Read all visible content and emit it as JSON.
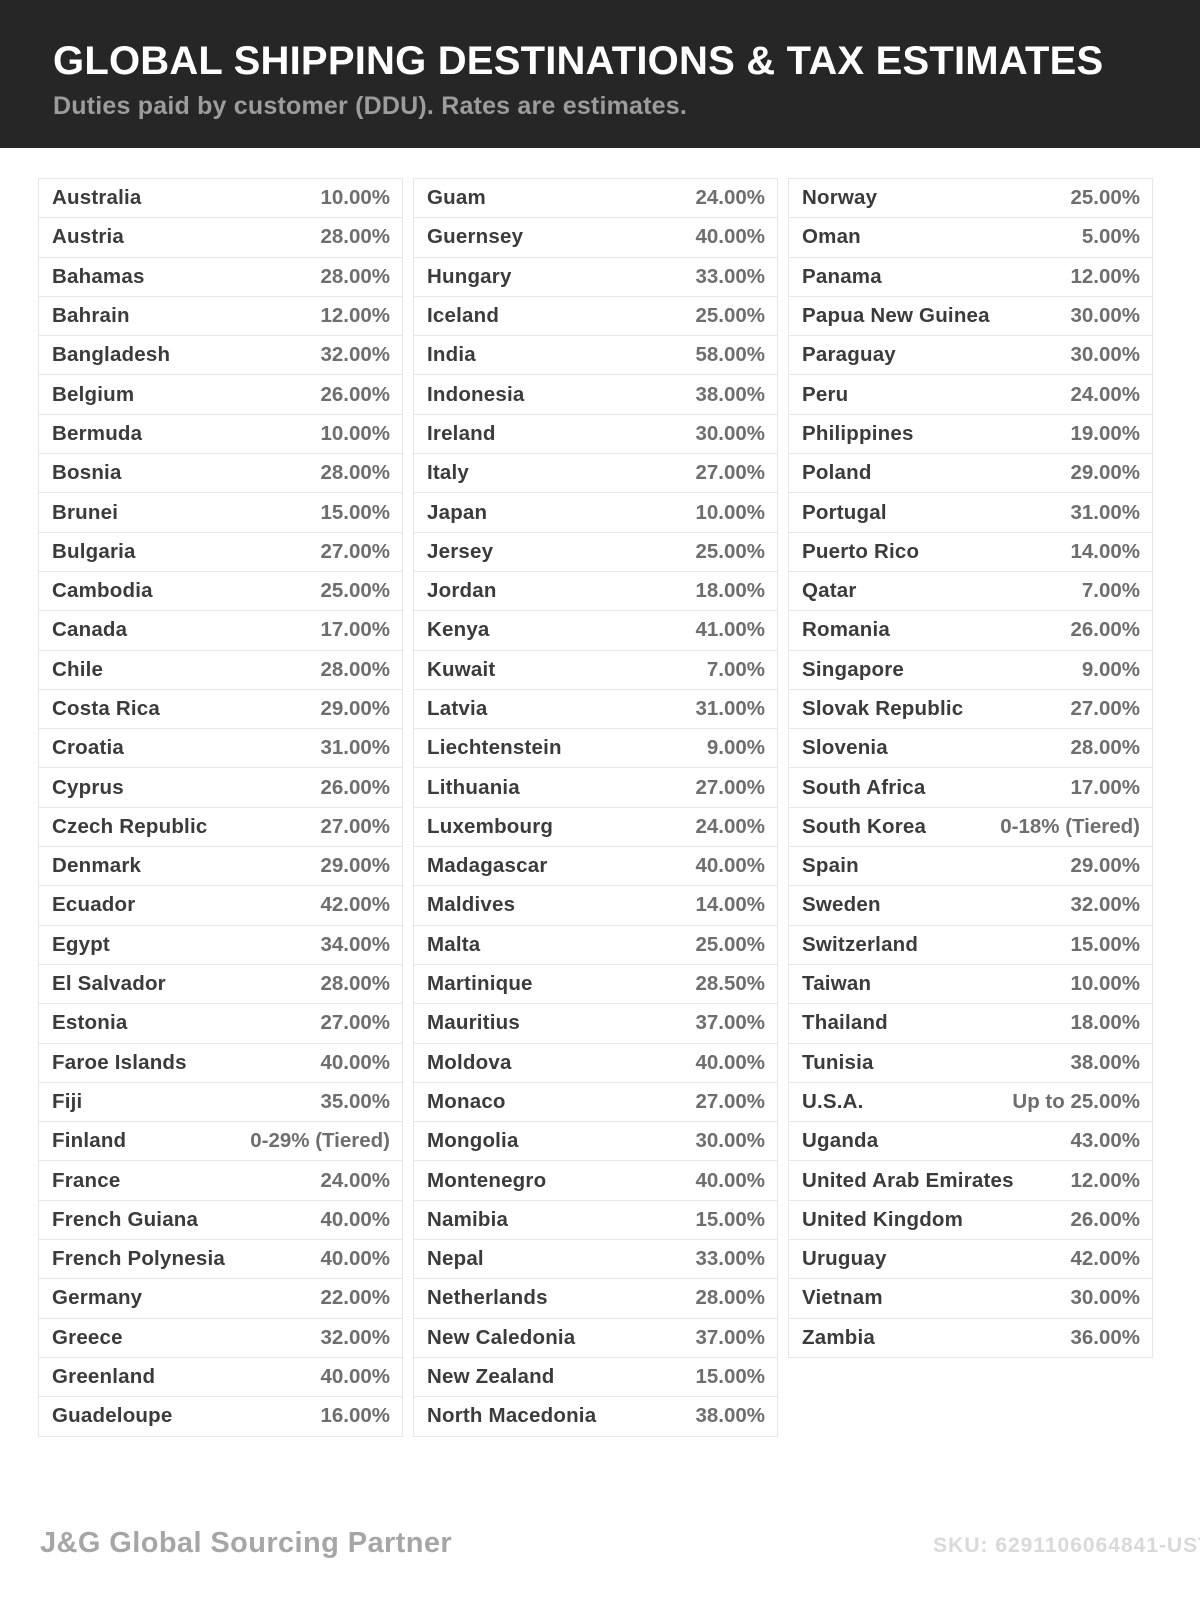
{
  "header": {
    "title": "GLOBAL SHIPPING DESTINATIONS & TAX ESTIMATES",
    "subtitle": "Duties paid by customer (DDU). Rates are estimates."
  },
  "footer": {
    "brand": "J&G Global Sourcing Partner",
    "sku": "SKU: 6291106064841-UST"
  },
  "colors": {
    "header_bg": "#262626",
    "title": "#ffffff",
    "subtitle": "#9c9c9c",
    "country": "#3b3b3b",
    "rate": "#6e6e6e",
    "row_border": "#e7e7e7",
    "footer_brand": "#a6a6a6",
    "footer_sku": "#d9d9d9",
    "page_bg": "#ffffff"
  },
  "columns": [
    [
      {
        "country": "Australia",
        "rate": "10.00%"
      },
      {
        "country": "Austria",
        "rate": "28.00%"
      },
      {
        "country": "Bahamas",
        "rate": "28.00%"
      },
      {
        "country": "Bahrain",
        "rate": "12.00%"
      },
      {
        "country": "Bangladesh",
        "rate": "32.00%"
      },
      {
        "country": "Belgium",
        "rate": "26.00%"
      },
      {
        "country": "Bermuda",
        "rate": "10.00%"
      },
      {
        "country": "Bosnia",
        "rate": "28.00%"
      },
      {
        "country": "Brunei",
        "rate": "15.00%"
      },
      {
        "country": "Bulgaria",
        "rate": "27.00%"
      },
      {
        "country": "Cambodia",
        "rate": "25.00%"
      },
      {
        "country": "Canada",
        "rate": "17.00%"
      },
      {
        "country": "Chile",
        "rate": "28.00%"
      },
      {
        "country": "Costa Rica",
        "rate": "29.00%"
      },
      {
        "country": "Croatia",
        "rate": "31.00%"
      },
      {
        "country": "Cyprus",
        "rate": "26.00%"
      },
      {
        "country": "Czech Republic",
        "rate": "27.00%"
      },
      {
        "country": "Denmark",
        "rate": "29.00%"
      },
      {
        "country": "Ecuador",
        "rate": "42.00%"
      },
      {
        "country": "Egypt",
        "rate": "34.00%"
      },
      {
        "country": "El Salvador",
        "rate": "28.00%"
      },
      {
        "country": "Estonia",
        "rate": "27.00%"
      },
      {
        "country": "Faroe Islands",
        "rate": "40.00%"
      },
      {
        "country": "Fiji",
        "rate": "35.00%"
      },
      {
        "country": "Finland",
        "rate": "0-29% (Tiered)"
      },
      {
        "country": "France",
        "rate": "24.00%"
      },
      {
        "country": "French Guiana",
        "rate": "40.00%"
      },
      {
        "country": "French Polynesia",
        "rate": "40.00%"
      },
      {
        "country": "Germany",
        "rate": "22.00%"
      },
      {
        "country": "Greece",
        "rate": "32.00%"
      },
      {
        "country": "Greenland",
        "rate": "40.00%"
      },
      {
        "country": "Guadeloupe",
        "rate": "16.00%"
      }
    ],
    [
      {
        "country": "Guam",
        "rate": "24.00%"
      },
      {
        "country": "Guernsey",
        "rate": "40.00%"
      },
      {
        "country": "Hungary",
        "rate": "33.00%"
      },
      {
        "country": "Iceland",
        "rate": "25.00%"
      },
      {
        "country": "India",
        "rate": "58.00%"
      },
      {
        "country": "Indonesia",
        "rate": "38.00%"
      },
      {
        "country": "Ireland",
        "rate": "30.00%"
      },
      {
        "country": "Italy",
        "rate": "27.00%"
      },
      {
        "country": "Japan",
        "rate": "10.00%"
      },
      {
        "country": "Jersey",
        "rate": "25.00%"
      },
      {
        "country": "Jordan",
        "rate": "18.00%"
      },
      {
        "country": "Kenya",
        "rate": "41.00%"
      },
      {
        "country": "Kuwait",
        "rate": "7.00%"
      },
      {
        "country": "Latvia",
        "rate": "31.00%"
      },
      {
        "country": "Liechtenstein",
        "rate": "9.00%"
      },
      {
        "country": "Lithuania",
        "rate": "27.00%"
      },
      {
        "country": "Luxembourg",
        "rate": "24.00%"
      },
      {
        "country": "Madagascar",
        "rate": "40.00%"
      },
      {
        "country": "Maldives",
        "rate": "14.00%"
      },
      {
        "country": "Malta",
        "rate": "25.00%"
      },
      {
        "country": "Martinique",
        "rate": "28.50%"
      },
      {
        "country": "Mauritius",
        "rate": "37.00%"
      },
      {
        "country": "Moldova",
        "rate": "40.00%"
      },
      {
        "country": "Monaco",
        "rate": "27.00%"
      },
      {
        "country": "Mongolia",
        "rate": "30.00%"
      },
      {
        "country": "Montenegro",
        "rate": "40.00%"
      },
      {
        "country": "Namibia",
        "rate": "15.00%"
      },
      {
        "country": "Nepal",
        "rate": "33.00%"
      },
      {
        "country": "Netherlands",
        "rate": "28.00%"
      },
      {
        "country": "New Caledonia",
        "rate": "37.00%"
      },
      {
        "country": "New Zealand",
        "rate": "15.00%"
      },
      {
        "country": "North Macedonia",
        "rate": "38.00%"
      }
    ],
    [
      {
        "country": "Norway",
        "rate": "25.00%"
      },
      {
        "country": "Oman",
        "rate": "5.00%"
      },
      {
        "country": "Panama",
        "rate": "12.00%"
      },
      {
        "country": "Papua New Guinea",
        "rate": "30.00%"
      },
      {
        "country": "Paraguay",
        "rate": "30.00%"
      },
      {
        "country": "Peru",
        "rate": "24.00%"
      },
      {
        "country": "Philippines",
        "rate": "19.00%"
      },
      {
        "country": "Poland",
        "rate": "29.00%"
      },
      {
        "country": "Portugal",
        "rate": "31.00%"
      },
      {
        "country": "Puerto Rico",
        "rate": "14.00%"
      },
      {
        "country": "Qatar",
        "rate": "7.00%"
      },
      {
        "country": "Romania",
        "rate": "26.00%"
      },
      {
        "country": "Singapore",
        "rate": "9.00%"
      },
      {
        "country": "Slovak Republic",
        "rate": "27.00%"
      },
      {
        "country": "Slovenia",
        "rate": "28.00%"
      },
      {
        "country": "South Africa",
        "rate": "17.00%"
      },
      {
        "country": "South Korea",
        "rate": "0-18% (Tiered)"
      },
      {
        "country": "Spain",
        "rate": "29.00%"
      },
      {
        "country": "Sweden",
        "rate": "32.00%"
      },
      {
        "country": "Switzerland",
        "rate": "15.00%"
      },
      {
        "country": "Taiwan",
        "rate": "10.00%"
      },
      {
        "country": "Thailand",
        "rate": "18.00%"
      },
      {
        "country": "Tunisia",
        "rate": "38.00%"
      },
      {
        "country": "U.S.A.",
        "rate": "Up to 25.00%"
      },
      {
        "country": "Uganda",
        "rate": "43.00%"
      },
      {
        "country": "United Arab Emirates",
        "rate": "12.00%"
      },
      {
        "country": "United Kingdom",
        "rate": "26.00%"
      },
      {
        "country": "Uruguay",
        "rate": "42.00%"
      },
      {
        "country": "Vietnam",
        "rate": "30.00%"
      },
      {
        "country": "Zambia",
        "rate": "36.00%"
      }
    ]
  ]
}
